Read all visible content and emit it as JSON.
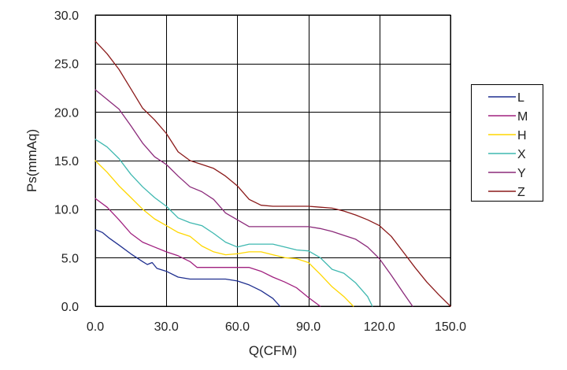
{
  "chart_data": {
    "type": "line",
    "title": "",
    "xlabel": "Q(CFM)",
    "ylabel": "Ps(mmAq)",
    "xlim": [
      0,
      150
    ],
    "ylim": [
      0,
      30
    ],
    "x_ticks": [
      "0.0",
      "30.0",
      "60.0",
      "90.0",
      "120.0",
      "150.0"
    ],
    "y_ticks": [
      "0.0",
      "5.0",
      "10.0",
      "15.0",
      "20.0",
      "25.0",
      "30.0"
    ],
    "grid": true,
    "legend_position": "right",
    "series": [
      {
        "name": "L",
        "color": "#1f2f8f",
        "points": [
          [
            0,
            7.9
          ],
          [
            3,
            7.6
          ],
          [
            6,
            7.0
          ],
          [
            10,
            6.3
          ],
          [
            15,
            5.4
          ],
          [
            20,
            4.6
          ],
          [
            22,
            4.3
          ],
          [
            24,
            4.5
          ],
          [
            26,
            3.9
          ],
          [
            30,
            3.6
          ],
          [
            35,
            3.0
          ],
          [
            40,
            2.8
          ],
          [
            45,
            2.8
          ],
          [
            50,
            2.8
          ],
          [
            55,
            2.8
          ],
          [
            60,
            2.6
          ],
          [
            65,
            2.2
          ],
          [
            70,
            1.6
          ],
          [
            75,
            0.8
          ],
          [
            78,
            0.0
          ]
        ]
      },
      {
        "name": "M",
        "color": "#a0207f",
        "points": [
          [
            0,
            11.1
          ],
          [
            5,
            10.2
          ],
          [
            10,
            8.9
          ],
          [
            15,
            7.5
          ],
          [
            20,
            6.6
          ],
          [
            25,
            6.1
          ],
          [
            30,
            5.6
          ],
          [
            35,
            5.2
          ],
          [
            40,
            4.6
          ],
          [
            43,
            4.0
          ],
          [
            50,
            4.0
          ],
          [
            55,
            4.0
          ],
          [
            60,
            4.0
          ],
          [
            65,
            4.0
          ],
          [
            70,
            3.6
          ],
          [
            75,
            3.0
          ],
          [
            80,
            2.5
          ],
          [
            85,
            1.9
          ],
          [
            90,
            0.9
          ],
          [
            95,
            0.0
          ]
        ]
      },
      {
        "name": "H",
        "color": "#ffd700",
        "points": [
          [
            0,
            15.0
          ],
          [
            5,
            13.8
          ],
          [
            10,
            12.4
          ],
          [
            15,
            11.2
          ],
          [
            20,
            10.0
          ],
          [
            25,
            9.0
          ],
          [
            30,
            8.3
          ],
          [
            35,
            7.6
          ],
          [
            40,
            7.2
          ],
          [
            45,
            6.2
          ],
          [
            50,
            5.6
          ],
          [
            55,
            5.3
          ],
          [
            60,
            5.4
          ],
          [
            65,
            5.6
          ],
          [
            70,
            5.6
          ],
          [
            75,
            5.3
          ],
          [
            80,
            5.0
          ],
          [
            85,
            4.9
          ],
          [
            90,
            4.5
          ],
          [
            95,
            3.3
          ],
          [
            100,
            2.0
          ],
          [
            105,
            1.0
          ],
          [
            109,
            0.0
          ]
        ]
      },
      {
        "name": "X",
        "color": "#3fb8b0",
        "points": [
          [
            0,
            17.2
          ],
          [
            5,
            16.4
          ],
          [
            10,
            15.2
          ],
          [
            15,
            13.6
          ],
          [
            20,
            12.3
          ],
          [
            25,
            11.2
          ],
          [
            30,
            10.3
          ],
          [
            35,
            9.1
          ],
          [
            40,
            8.6
          ],
          [
            45,
            8.3
          ],
          [
            50,
            7.5
          ],
          [
            55,
            6.6
          ],
          [
            60,
            6.1
          ],
          [
            65,
            6.4
          ],
          [
            70,
            6.4
          ],
          [
            75,
            6.4
          ],
          [
            80,
            6.1
          ],
          [
            85,
            5.8
          ],
          [
            90,
            5.7
          ],
          [
            95,
            5.0
          ],
          [
            100,
            3.8
          ],
          [
            105,
            3.4
          ],
          [
            110,
            2.4
          ],
          [
            115,
            1.0
          ],
          [
            117,
            0.0
          ]
        ]
      },
      {
        "name": "Y",
        "color": "#8b2a7a",
        "points": [
          [
            0,
            22.3
          ],
          [
            5,
            21.3
          ],
          [
            10,
            20.3
          ],
          [
            15,
            18.6
          ],
          [
            20,
            16.8
          ],
          [
            25,
            15.4
          ],
          [
            30,
            14.6
          ],
          [
            35,
            13.4
          ],
          [
            40,
            12.3
          ],
          [
            45,
            11.8
          ],
          [
            50,
            11.0
          ],
          [
            55,
            9.6
          ],
          [
            60,
            8.9
          ],
          [
            65,
            8.2
          ],
          [
            70,
            8.2
          ],
          [
            75,
            8.2
          ],
          [
            80,
            8.2
          ],
          [
            85,
            8.2
          ],
          [
            90,
            8.2
          ],
          [
            95,
            8.0
          ],
          [
            100,
            7.7
          ],
          [
            105,
            7.3
          ],
          [
            110,
            6.9
          ],
          [
            115,
            6.1
          ],
          [
            120,
            4.9
          ],
          [
            125,
            3.2
          ],
          [
            130,
            1.4
          ],
          [
            134,
            0.0
          ]
        ]
      },
      {
        "name": "Z",
        "color": "#8b1a1a",
        "points": [
          [
            0,
            27.3
          ],
          [
            5,
            26.0
          ],
          [
            10,
            24.4
          ],
          [
            15,
            22.4
          ],
          [
            20,
            20.4
          ],
          [
            25,
            19.2
          ],
          [
            30,
            17.8
          ],
          [
            35,
            15.9
          ],
          [
            40,
            15.0
          ],
          [
            45,
            14.6
          ],
          [
            50,
            14.2
          ],
          [
            55,
            13.4
          ],
          [
            60,
            12.4
          ],
          [
            65,
            11.0
          ],
          [
            70,
            10.4
          ],
          [
            75,
            10.3
          ],
          [
            80,
            10.3
          ],
          [
            85,
            10.3
          ],
          [
            90,
            10.3
          ],
          [
            95,
            10.2
          ],
          [
            100,
            10.1
          ],
          [
            105,
            9.8
          ],
          [
            110,
            9.4
          ],
          [
            115,
            8.9
          ],
          [
            120,
            8.3
          ],
          [
            125,
            7.2
          ],
          [
            130,
            5.6
          ],
          [
            135,
            4.0
          ],
          [
            140,
            2.5
          ],
          [
            145,
            1.2
          ],
          [
            150,
            0.0
          ]
        ]
      }
    ]
  }
}
